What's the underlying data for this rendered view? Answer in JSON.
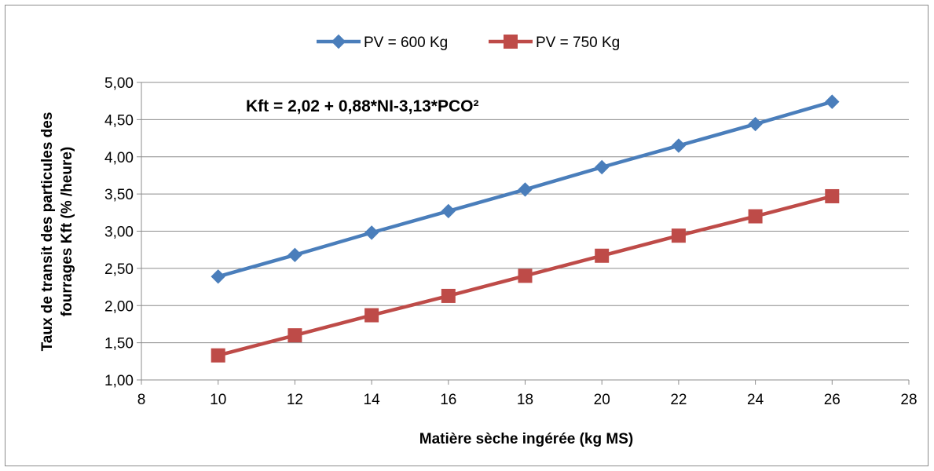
{
  "chart_data": {
    "type": "line",
    "title": "",
    "xlabel": "Matière sèche ingérée (kg MS)",
    "ylabel_lines": [
      "Taux de transit des particules des",
      "fourrages Kft (% /heure)"
    ],
    "xlim": [
      8,
      28
    ],
    "ylim": [
      1.0,
      5.0
    ],
    "x_ticks": [
      "8",
      "10",
      "12",
      "14",
      "16",
      "18",
      "20",
      "22",
      "24",
      "26",
      "28"
    ],
    "y_ticks": [
      "1,00",
      "1,50",
      "2,00",
      "2,50",
      "3,00",
      "3,50",
      "4,00",
      "4,50",
      "5,00"
    ],
    "grid": "horizontal",
    "legend_position": "top",
    "annotation": "Kft = 2,02 + 0,88*NI-3,13*PCO²",
    "x": [
      10,
      12,
      14,
      16,
      18,
      20,
      22,
      24,
      26
    ],
    "series": [
      {
        "name": "PV = 600 Kg",
        "marker": "diamond",
        "color": "#4a7ebb",
        "values": [
          2.39,
          2.68,
          2.98,
          3.27,
          3.56,
          3.86,
          4.15,
          4.44,
          4.74
        ]
      },
      {
        "name": "PV = 750 Kg",
        "marker": "square",
        "color": "#be4b48",
        "values": [
          1.33,
          1.6,
          1.87,
          2.13,
          2.4,
          2.67,
          2.94,
          3.2,
          3.47
        ]
      }
    ]
  }
}
